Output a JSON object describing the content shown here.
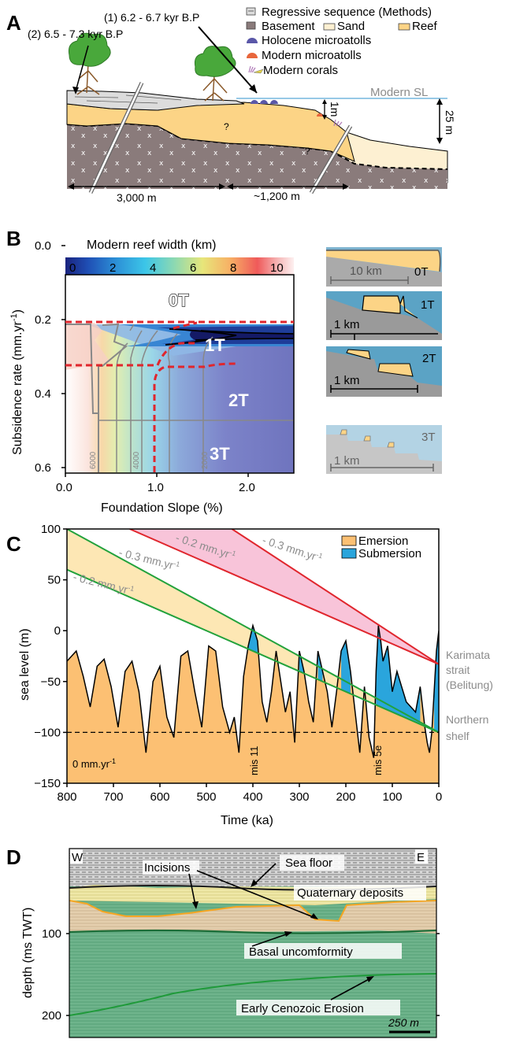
{
  "panelA": {
    "letter": "A",
    "labels": {
      "age1": "(1) 6.2 - 6.7 kyr B.P",
      "age2": "(2) 6.5 - 7.3 kyr B.P",
      "modern_sl": "Modern SL",
      "one_m": "1m",
      "twentyfive_m": "25 m",
      "dist1": "3,000 m",
      "dist2": "~1,200 m",
      "q1": "?",
      "q2": "?"
    },
    "legend": {
      "regressive": "Regressive sequence (Methods)",
      "basement": "Basement",
      "sand": "Sand",
      "reef": "Reef",
      "holocene": "Holocene microatolls",
      "modern_micro": "Modern microatolls",
      "modern_corals": "Modern corals"
    },
    "colors": {
      "reef": "#fcd486",
      "sand": "#fdf0d2",
      "basement": "#8a7b7b",
      "water": "#59a9d6",
      "holocene": "#5a57a8",
      "modern": "#e8663c"
    }
  },
  "panelB": {
    "letter": "B",
    "colorbar_title": "Modern reef width (km)",
    "colorbar_ticks": [
      "0",
      "2",
      "4",
      "6",
      "8",
      "10"
    ],
    "ylabel": "Subsidence rate (mm.yr",
    "ylabel_sup": "-1",
    "ylabel_end": ")",
    "yticks": [
      "0.0",
      "0.2",
      "0.4",
      "0.6"
    ],
    "xticks": [
      "0.0",
      "1.0",
      "2.0"
    ],
    "xlabel": "Foundation Slope (%)",
    "regions": [
      "0T",
      "1T",
      "2T",
      "3T"
    ],
    "contour_labels": [
      "6000",
      "4000",
      "2000"
    ],
    "sketches": [
      {
        "label": "0T",
        "scale": "10 km"
      },
      {
        "label": "1T",
        "scale": "1 km"
      },
      {
        "label": "2T",
        "scale": "1 km"
      },
      {
        "label": "3T",
        "scale": "1 km"
      }
    ]
  },
  "panelC": {
    "letter": "C",
    "ylabel": "sea level (m)",
    "xlabel": "Time (ka)",
    "yticks": [
      "100",
      "50",
      "0",
      "−50",
      "−100",
      "−150"
    ],
    "xticks": [
      "800",
      "700",
      "600",
      "500",
      "400",
      "300",
      "200",
      "100",
      "0"
    ],
    "legend": {
      "emersion": "Emersion",
      "submersion": "Submersion"
    },
    "rate_labels": {
      "a": "- 0.3 mm.yr",
      "b": "- 0.2 mm.yr",
      "c": "- 0.3 mm.yr",
      "d": "- 0.2 mm.yr",
      "sup": "-1",
      "zero": "0 mm.yr"
    },
    "mis": [
      "mis 11",
      "mis 5e"
    ],
    "side": {
      "karimata1": "Karimata",
      "karimata2": "strait",
      "karimata3": "(Belitung)",
      "northern1": "Northern",
      "northern2": "shelf"
    },
    "colors": {
      "emersion": "#fcc073",
      "submersion": "#2aa5dc",
      "red": "#e0262d",
      "green": "#22a23c"
    }
  },
  "chart_data": {
    "type": "area",
    "title": "",
    "xlabel": "Time (ka)",
    "ylabel": "sea level (m)",
    "xlim": [
      800,
      0
    ],
    "ylim": [
      -150,
      100
    ],
    "x": [
      800,
      780,
      765,
      750,
      735,
      720,
      705,
      690,
      675,
      660,
      645,
      630,
      615,
      600,
      585,
      570,
      555,
      540,
      525,
      510,
      495,
      480,
      465,
      450,
      440,
      430,
      420,
      410,
      400,
      390,
      380,
      370,
      360,
      350,
      340,
      330,
      320,
      310,
      300,
      290,
      280,
      270,
      260,
      250,
      240,
      230,
      220,
      210,
      200,
      190,
      180,
      170,
      160,
      150,
      140,
      135,
      130,
      125,
      120,
      110,
      100,
      90,
      80,
      70,
      60,
      50,
      40,
      30,
      25,
      20,
      15,
      10,
      5,
      0
    ],
    "series": [
      {
        "name": "",
        "values": [
          -30,
          -20,
          -45,
          -75,
          -35,
          -28,
          -55,
          -95,
          -40,
          -30,
          -60,
          -120,
          -50,
          -35,
          -85,
          -105,
          -25,
          -20,
          -60,
          -95,
          -15,
          -20,
          -75,
          -100,
          -85,
          -120,
          -45,
          -15,
          5,
          -10,
          -70,
          -90,
          -60,
          -20,
          -50,
          -80,
          -60,
          -110,
          -20,
          -40,
          -70,
          -90,
          -20,
          -40,
          -60,
          -95,
          -60,
          -20,
          -10,
          -40,
          -80,
          -120,
          -55,
          -105,
          -125,
          -40,
          5,
          -10,
          -30,
          -15,
          -60,
          -40,
          -55,
          -70,
          -75,
          -80,
          -55,
          -95,
          -110,
          -120,
          -100,
          -60,
          -20,
          0
        ]
      }
    ],
    "rate_lines": [
      {
        "name": "- 0.3 mm.yr-1",
        "from": [
          800,
          100
        ],
        "to": [
          0,
          -100
        ]
      },
      {
        "name": "- 0.2 mm.yr-1",
        "from": [
          800,
          60
        ],
        "to": [
          0,
          -100
        ]
      },
      {
        "name": "- 0.2 mm.yr-1",
        "from": [
          665,
          100
        ],
        "to": [
          0,
          -33
        ]
      },
      {
        "name": "- 0.3 mm.yr-1",
        "from": [
          445,
          100
        ],
        "to": [
          0,
          -33
        ]
      }
    ],
    "hline": -100
  },
  "panelD": {
    "letter": "D",
    "ylabel": "depth (ms TWT)",
    "yticks": [
      "100",
      "200"
    ],
    "W": "W",
    "E": "E",
    "labels": {
      "seafloor": "Sea floor",
      "incisions": "Incisions",
      "quaternary": "Quaternary deposits",
      "basal": "Basal uncomformity",
      "early": "Early Cenozoic Erosion",
      "scale": "250 m"
    }
  }
}
